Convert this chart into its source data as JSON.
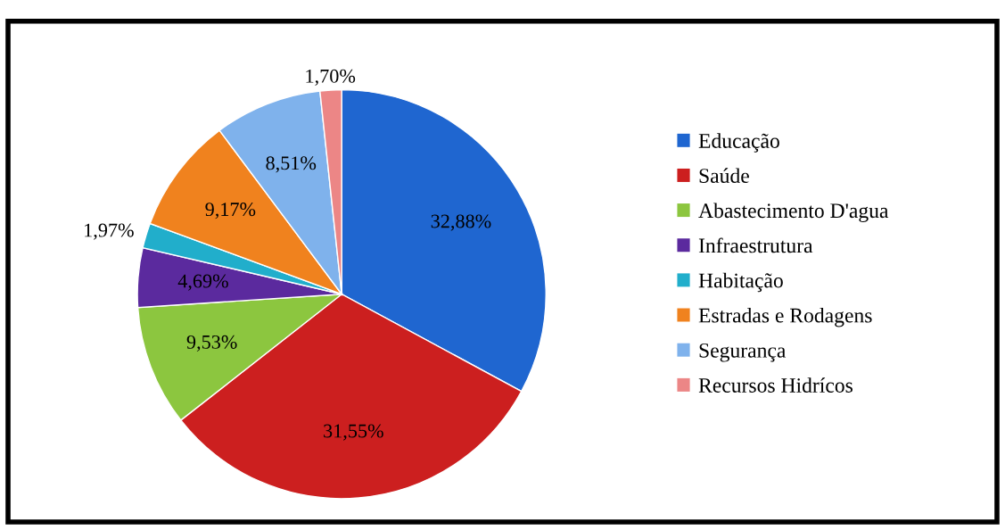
{
  "chart_data": {
    "type": "pie",
    "categories": [
      "Educação",
      "Saúde",
      "Abastecimento D'agua",
      "Infraestrutura",
      "Habitação",
      "Estradas e Rodagens",
      "Segurança",
      "Recursos Hidrícos"
    ],
    "values": [
      32.88,
      31.55,
      9.53,
      4.69,
      1.97,
      9.17,
      8.51,
      1.7
    ],
    "colors": [
      "#1f66d0",
      "#cc1f1f",
      "#8cc63f",
      "#5b2a9e",
      "#21aecb",
      "#f0821e",
      "#7fb2ec",
      "#ec8686"
    ],
    "value_labels": [
      "32,88%",
      "31,55%",
      "9,53%",
      "4,69%",
      "1,97%",
      "9,17%",
      "8,51%",
      "1,70%"
    ],
    "legend": "right"
  }
}
